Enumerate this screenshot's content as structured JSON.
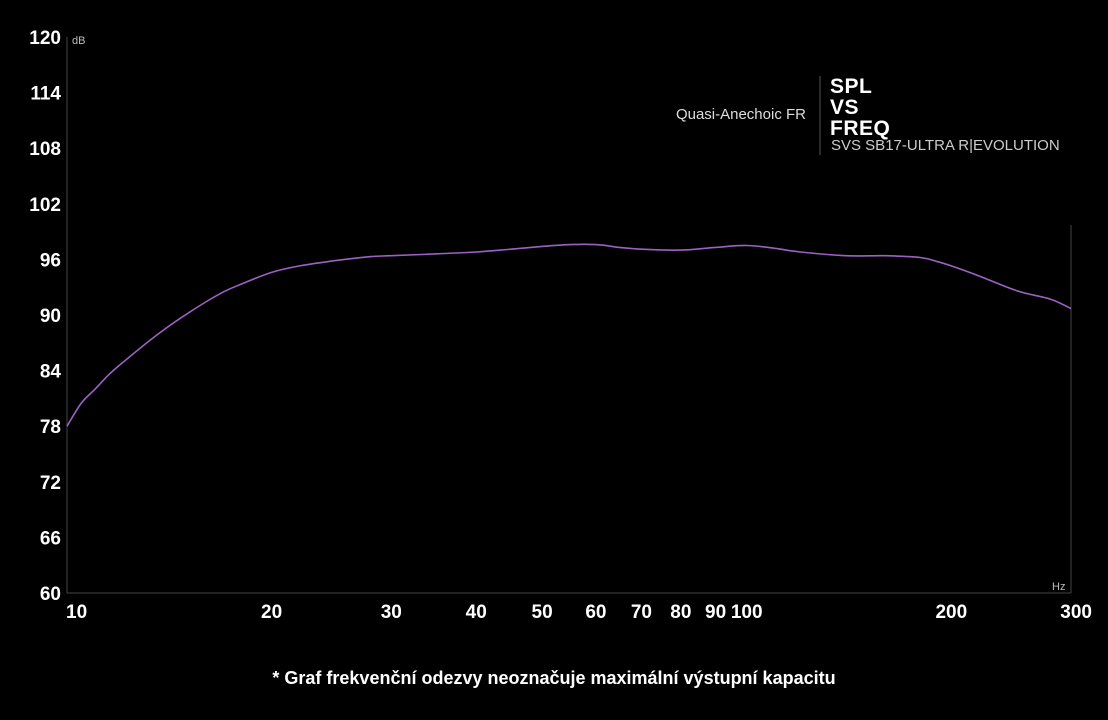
{
  "chart_data": {
    "type": "line",
    "title_lines": [
      "SPL",
      "VS",
      "FREQ"
    ],
    "subtitle": "Quasi-Anechoic FR",
    "model": "SVS SB17-ULTRA R|EVOLUTION",
    "ylabel": "dB",
    "xlabel": "Hz",
    "x_scale": "log",
    "xlim": [
      10,
      300
    ],
    "ylim": [
      60,
      120
    ],
    "y_ticks": [
      "120",
      "114",
      "108",
      "102",
      "96",
      "90",
      "84",
      "78",
      "72",
      "66",
      "60"
    ],
    "x_ticks": [
      "10",
      "20",
      "30",
      "40",
      "50",
      "60",
      "70",
      "80",
      "90",
      "100",
      "200",
      "300"
    ],
    "line_color": "#9b62c4",
    "series": [
      {
        "x": [
          10,
          10.5,
          11,
          11.5,
          12,
          13,
          14,
          15,
          16,
          17,
          18,
          20,
          22,
          25,
          28,
          30,
          35,
          40,
          45,
          50,
          55,
          60,
          65,
          70,
          80,
          90,
          100,
          110,
          120,
          140,
          160,
          180,
          190,
          200,
          220,
          250,
          280,
          300
        ],
        "y": [
          78,
          80.5,
          82,
          83.5,
          84.7,
          86.8,
          88.6,
          90.1,
          91.4,
          92.5,
          93.3,
          94.6,
          95.3,
          95.9,
          96.3,
          96.4,
          96.6,
          96.8,
          97.1,
          97.4,
          97.6,
          97.6,
          97.3,
          97.1,
          97.0,
          97.3,
          97.5,
          97.2,
          96.8,
          96.4,
          96.4,
          96.2,
          95.8,
          95.3,
          94.2,
          92.6,
          91.7,
          90.7
        ]
      }
    ]
  },
  "footnote": "* Graf frekvenční odezvy neoznačuje maximální výstupní kapacitu"
}
